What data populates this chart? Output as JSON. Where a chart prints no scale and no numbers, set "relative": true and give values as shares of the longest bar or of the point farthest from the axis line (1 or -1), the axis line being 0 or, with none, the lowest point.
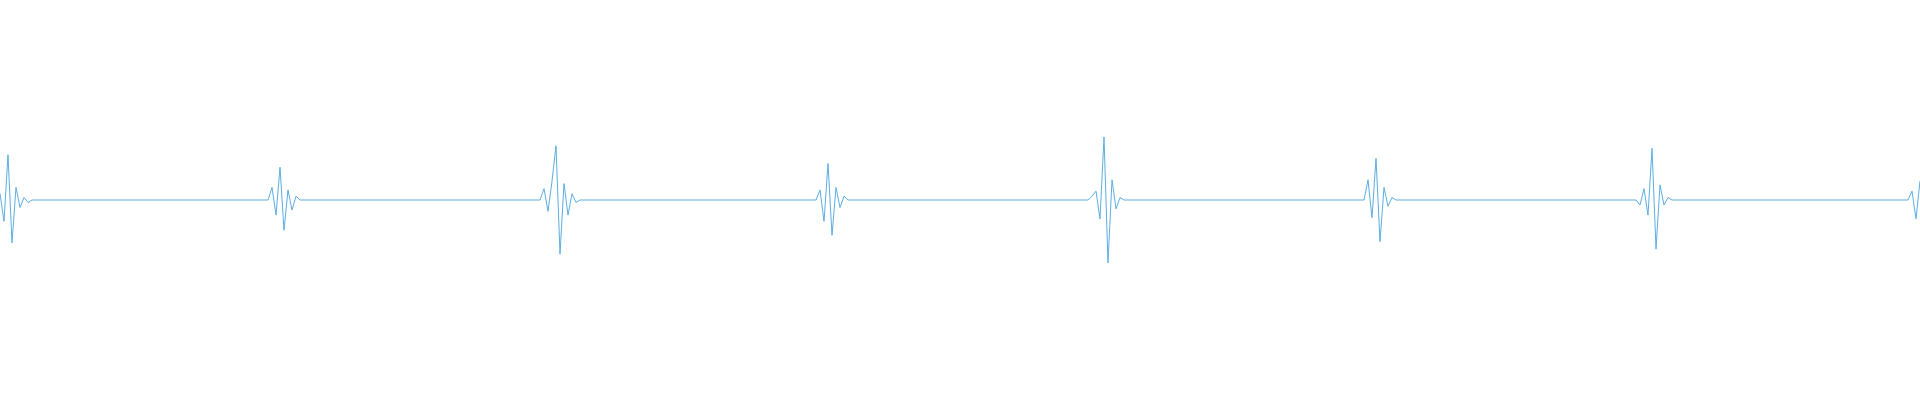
{
  "chart_data": {
    "type": "line",
    "relative": true,
    "color": "#5dade2",
    "categories": [
      null,
      null,
      null,
      null,
      null,
      null,
      null,
      null,
      null,
      null,
      null,
      null,
      null,
      null,
      null,
      null,
      null,
      null,
      null,
      null,
      null,
      null,
      null,
      null,
      null,
      null,
      null,
      null,
      null,
      null,
      null,
      null,
      null,
      null,
      null,
      null,
      null,
      null,
      null,
      null,
      null,
      null,
      null,
      null,
      null,
      null,
      null,
      null,
      null,
      null,
      null,
      null,
      null,
      null,
      null,
      null,
      null,
      null,
      null,
      null,
      null,
      null,
      null,
      null,
      null,
      null,
      null,
      null,
      null,
      null,
      null,
      null,
      null,
      null,
      null,
      null,
      null,
      null,
      null,
      null,
      null,
      null,
      null,
      null,
      null,
      null,
      null,
      null,
      null,
      null,
      null,
      null,
      null,
      null,
      null,
      null,
      null,
      null,
      null,
      null,
      null,
      null,
      null,
      null,
      null,
      null,
      null,
      null,
      null,
      null,
      null,
      null,
      null,
      null,
      null,
      null,
      null,
      null,
      null,
      null,
      null,
      null,
      null,
      null,
      null,
      null,
      null,
      null,
      null,
      null,
      null,
      null,
      null,
      null,
      null,
      null,
      null,
      null,
      null,
      null,
      null,
      null,
      null,
      null,
      null,
      null,
      null,
      null,
      null,
      null,
      null,
      null,
      null,
      null,
      null,
      null,
      null,
      null,
      null,
      null,
      null,
      null,
      null,
      null,
      null,
      null,
      null,
      null,
      null,
      null,
      null,
      null,
      null,
      null,
      null,
      null,
      null,
      null,
      null,
      null,
      null,
      null,
      null,
      null,
      null,
      null,
      null,
      null,
      null,
      null,
      null,
      null,
      null,
      null,
      null,
      null,
      null,
      null,
      null,
      null,
      null,
      null,
      null,
      null,
      null,
      null,
      null,
      null,
      null,
      null,
      null,
      null,
      null,
      null,
      null,
      null,
      null,
      null,
      null,
      null,
      null,
      null,
      null,
      null,
      null,
      null,
      null,
      null,
      null,
      null,
      null,
      null,
      null,
      null,
      null,
      null,
      null,
      null,
      null,
      null,
      null,
      null,
      null,
      null,
      null,
      null,
      null,
      null,
      null,
      null,
      null,
      null,
      null,
      null,
      null,
      null,
      null,
      null,
      null,
      null,
      null,
      null,
      null,
      null,
      null,
      null,
      null,
      null,
      null,
      null,
      null,
      null,
      null,
      null,
      null,
      null,
      null,
      null,
      null,
      null,
      null,
      null,
      null,
      null,
      null,
      null,
      null,
      null,
      null,
      null,
      null,
      null,
      null,
      null,
      null,
      null,
      null,
      null,
      null,
      null,
      null,
      null,
      null,
      null,
      null,
      null,
      null,
      null,
      null,
      null,
      null,
      null,
      null,
      null,
      null,
      null,
      null,
      null,
      null,
      null,
      null,
      null,
      null,
      null,
      null,
      null,
      null,
      null,
      null,
      null,
      null,
      null,
      null,
      null,
      null,
      null,
      null,
      null,
      null,
      null,
      null,
      null,
      null,
      null,
      null,
      null,
      null,
      null,
      null,
      null,
      null,
      null,
      null,
      null,
      null,
      null,
      null,
      null,
      null,
      null,
      null,
      null,
      null,
      null,
      null,
      null,
      null,
      null,
      null,
      null,
      null,
      null,
      null,
      null,
      null,
      null,
      null,
      null,
      null,
      null,
      null,
      null,
      null,
      null,
      null,
      null,
      null,
      null,
      null,
      null,
      null,
      null,
      null,
      null,
      null,
      null,
      null,
      null,
      null,
      null,
      null,
      null,
      null,
      null,
      null,
      null,
      null,
      null,
      null,
      null,
      null,
      null,
      null,
      null,
      null,
      null,
      null,
      null,
      null,
      null,
      null,
      null,
      null,
      null,
      null,
      null,
      null,
      null,
      null,
      null,
      null,
      null,
      null,
      null,
      null,
      null,
      null,
      null,
      null,
      null,
      null,
      null,
      null,
      null,
      null,
      null,
      null,
      null,
      null,
      null,
      null,
      null,
      null,
      null,
      null,
      null,
      null,
      null,
      null,
      null,
      null,
      null,
      null,
      null,
      null,
      null,
      null,
      null,
      null,
      null,
      null,
      null,
      null,
      null,
      null,
      null,
      null,
      null,
      null,
      null,
      null
    ],
    "values": [
      0.55,
      0.33,
      0.86,
      0.16,
      0.6,
      0.44,
      0.52,
      0.48,
      0.5,
      0.5,
      0.5,
      0.5,
      0.5,
      0.5,
      0.5,
      0.5,
      0.5,
      0.5,
      0.5,
      0.5,
      0.5,
      0.5,
      0.5,
      0.5,
      0.5,
      0.5,
      0.5,
      0.5,
      0.5,
      0.5,
      0.5,
      0.5,
      0.5,
      0.5,
      0.5,
      0.5,
      0.5,
      0.5,
      0.5,
      0.5,
      0.5,
      0.5,
      0.5,
      0.5,
      0.5,
      0.5,
      0.5,
      0.5,
      0.5,
      0.5,
      0.5,
      0.5,
      0.5,
      0.5,
      0.5,
      0.5,
      0.5,
      0.5,
      0.5,
      0.5,
      0.5,
      0.5,
      0.5,
      0.5,
      0.5,
      0.5,
      0.5,
      0.5,
      0.6,
      0.38,
      0.76,
      0.26,
      0.58,
      0.42,
      0.53,
      0.5,
      0.5,
      0.5,
      0.5,
      0.5,
      0.5,
      0.5,
      0.5,
      0.5,
      0.5,
      0.5,
      0.5,
      0.5,
      0.5,
      0.5,
      0.5,
      0.5,
      0.5,
      0.5,
      0.5,
      0.5,
      0.5,
      0.5,
      0.5,
      0.5,
      0.5,
      0.5,
      0.5,
      0.5,
      0.5,
      0.5,
      0.5,
      0.5,
      0.5,
      0.5,
      0.5,
      0.5,
      0.5,
      0.5,
      0.5,
      0.5,
      0.5,
      0.5,
      0.5,
      0.5,
      0.5,
      0.5,
      0.5,
      0.5,
      0.5,
      0.5,
      0.5,
      0.5,
      0.5,
      0.5,
      0.5,
      0.5,
      0.5,
      0.5,
      0.5,
      0.5,
      0.59,
      0.41,
      0.65,
      0.93,
      0.07,
      0.63,
      0.38,
      0.55,
      0.48,
      0.5,
      0.5,
      0.5,
      0.5,
      0.5,
      0.5,
      0.5,
      0.5,
      0.5,
      0.5,
      0.5,
      0.5,
      0.5,
      0.5,
      0.5,
      0.5,
      0.5,
      0.5,
      0.5,
      0.5,
      0.5,
      0.5,
      0.5,
      0.5,
      0.5,
      0.5,
      0.5,
      0.5,
      0.5,
      0.5,
      0.5,
      0.5,
      0.5,
      0.5,
      0.5,
      0.5,
      0.5,
      0.5,
      0.5,
      0.5,
      0.5,
      0.5,
      0.5,
      0.5,
      0.5,
      0.5,
      0.5,
      0.5,
      0.5,
      0.5,
      0.5,
      0.5,
      0.5,
      0.5,
      0.5,
      0.5,
      0.5,
      0.5,
      0.5,
      0.5,
      0.58,
      0.33,
      0.79,
      0.22,
      0.6,
      0.44,
      0.53,
      0.5,
      0.5,
      0.5,
      0.5,
      0.5,
      0.5,
      0.5,
      0.5,
      0.5,
      0.5,
      0.5,
      0.5,
      0.5,
      0.5,
      0.5,
      0.5,
      0.5,
      0.5,
      0.5,
      0.5,
      0.5,
      0.5,
      0.5,
      0.5,
      0.5,
      0.5,
      0.5,
      0.5,
      0.5,
      0.5,
      0.5,
      0.5,
      0.5,
      0.5,
      0.5,
      0.5,
      0.5,
      0.5,
      0.5,
      0.5,
      0.5,
      0.5,
      0.5,
      0.5,
      0.5,
      0.5,
      0.5,
      0.5,
      0.5,
      0.5,
      0.5,
      0.5,
      0.5,
      0.5,
      0.5,
      0.5,
      0.5,
      0.5,
      0.5,
      0.5,
      0.5,
      0.53,
      0.57,
      0.35,
      1,
      0,
      0.66,
      0.43,
      0.52,
      0.5,
      0.5,
      0.5,
      0.5,
      0.5,
      0.5,
      0.5,
      0.5,
      0.5,
      0.5,
      0.5,
      0.5,
      0.5,
      0.5,
      0.5,
      0.5,
      0.5,
      0.5,
      0.5,
      0.5,
      0.5,
      0.5,
      0.5,
      0.5,
      0.5,
      0.5,
      0.5,
      0.5,
      0.5,
      0.5,
      0.5,
      0.5,
      0.5,
      0.5,
      0.5,
      0.5,
      0.5,
      0.5,
      0.5,
      0.5,
      0.5,
      0.5,
      0.5,
      0.5,
      0.5,
      0.5,
      0.5,
      0.5,
      0.5,
      0.5,
      0.5,
      0.5,
      0.5,
      0.5,
      0.5,
      0.5,
      0.5,
      0.5,
      0.5,
      0.5,
      0.5,
      0.66,
      0.36,
      0.83,
      0.17,
      0.6,
      0.45,
      0.52,
      0.5,
      0.5,
      0.5,
      0.5,
      0.5,
      0.5,
      0.5,
      0.5,
      0.5,
      0.5,
      0.5,
      0.5,
      0.5,
      0.5,
      0.5,
      0.5,
      0.5,
      0.5,
      0.5,
      0.5,
      0.5,
      0.5,
      0.5,
      0.5,
      0.5,
      0.5,
      0.5,
      0.5,
      0.5,
      0.5,
      0.5,
      0.5,
      0.5,
      0.5,
      0.5,
      0.5,
      0.5,
      0.5,
      0.5,
      0.5,
      0.5,
      0.5,
      0.5,
      0.5,
      0.5,
      0.5,
      0.5,
      0.5,
      0.5,
      0.5,
      0.5,
      0.5,
      0.5,
      0.5,
      0.5,
      0.5,
      0.5,
      0.5,
      0.5,
      0.5,
      0.5,
      0.46,
      0.59,
      0.38,
      0.91,
      0.11,
      0.62,
      0.46,
      0.52,
      0.5,
      0.5,
      0.5,
      0.5,
      0.5,
      0.5,
      0.5,
      0.5,
      0.5,
      0.5,
      0.5,
      0.5,
      0.5,
      0.5,
      0.5,
      0.5,
      0.5,
      0.5,
      0.5,
      0.5,
      0.5,
      0.5,
      0.5,
      0.5,
      0.5,
      0.5,
      0.5,
      0.5,
      0.5,
      0.5,
      0.5,
      0.5,
      0.5,
      0.5,
      0.5,
      0.5,
      0.5,
      0.5,
      0.5,
      0.5,
      0.5,
      0.5,
      0.5,
      0.5,
      0.5,
      0.5,
      0.5,
      0.5,
      0.5,
      0.5,
      0.5,
      0.5,
      0.5,
      0.5,
      0.5,
      0.5,
      0.5,
      0.5,
      0.5,
      0.5,
      0.57,
      0.35,
      0.65
    ]
  }
}
